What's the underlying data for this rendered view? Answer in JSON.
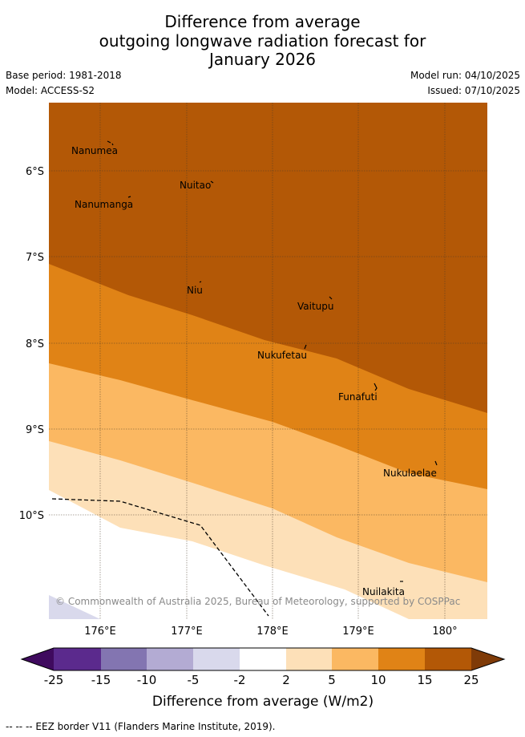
{
  "title": {
    "line1": "Difference from average",
    "line2": "outgoing longwave radiation forecast for",
    "line3": "January 2026"
  },
  "meta": {
    "base_period": "Base period: 1981-2018",
    "model": "Model: ACCESS-S2",
    "model_run": "Model run: 04/10/2025",
    "issued": "Issued: 07/10/2025"
  },
  "map": {
    "lat_labels": [
      "6°S",
      "7°S",
      "8°S",
      "9°S",
      "10°S"
    ],
    "lon_labels": [
      "176°E",
      "177°E",
      "178°E",
      "179°E",
      "180°"
    ],
    "places": [
      "Nanumea",
      "Nuitao",
      "Nanumanga",
      "Niu",
      "Vaitupu",
      "Nukufetau",
      "Funafuti",
      "Nukulaelae",
      "Nuilakita"
    ],
    "copyright": "© Commonwealth of Australia 2025, Bureau of Meteorology, supported by COSPPac"
  },
  "legend": {
    "ticks": [
      "-25",
      "-15",
      "-10",
      "-5",
      "-2",
      "2",
      "5",
      "10",
      "15",
      "25"
    ],
    "colors": [
      "#3f0a5e",
      "#5b2a8d",
      "#8375b1",
      "#b3abd3",
      "#d9d9ec",
      "#ffffff",
      "#fde0b8",
      "#fbb862",
      "#e08316",
      "#b35806",
      "#7f3b08"
    ],
    "label": "Difference from average (W/m2)"
  },
  "footer": "--  --  -- EEZ border V11 (Flanders Marine Institute, 2019)."
}
